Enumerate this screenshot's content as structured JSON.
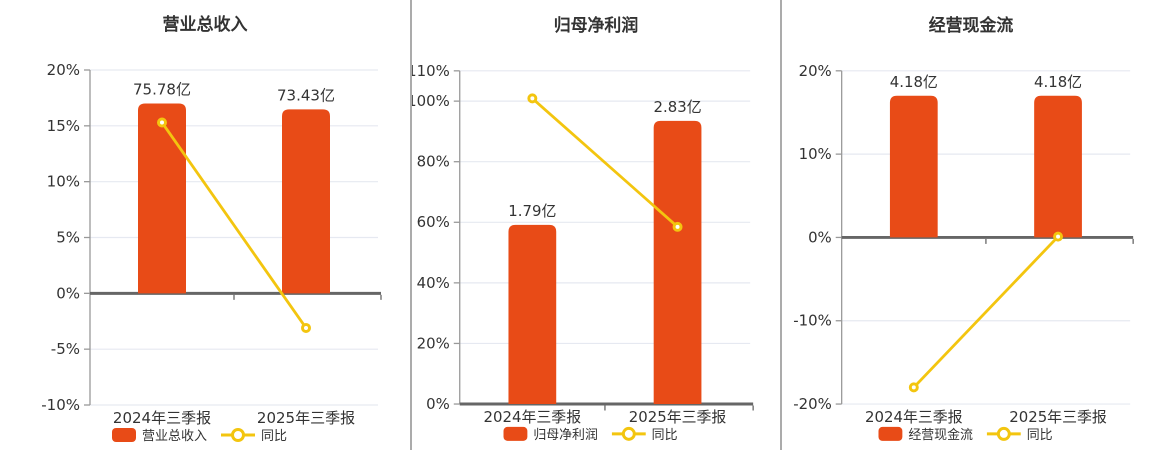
{
  "palette": {
    "background": "#ffffff",
    "bar": "#e84b17",
    "line": "#f3c50f",
    "grid": "#e6e9f1",
    "axis": "#999999",
    "baseline": "#666666",
    "text": "#333333",
    "separator": "#ababab"
  },
  "chart_data": [
    {
      "type": "bar",
      "title": "营业总收入",
      "categories": [
        "2024年三季报",
        "2025年三季报"
      ],
      "bar_series": {
        "name": "营业总收入",
        "unit": "亿",
        "values": [
          75.78,
          73.43
        ],
        "labels": [
          "75.78亿",
          "73.43亿"
        ]
      },
      "line_series": {
        "name": "同比",
        "unit": "%",
        "values_pct": [
          15.3,
          -3.1
        ]
      },
      "axis": {
        "min": -10,
        "max": 20,
        "ticks": [
          20,
          15,
          10,
          5,
          0,
          -5,
          -10
        ],
        "tick_suffix": "%",
        "grid": true
      },
      "legend_position": "bottom"
    },
    {
      "type": "bar",
      "title": "归母净利润",
      "categories": [
        "2024年三季报",
        "2025年三季报"
      ],
      "bar_series": {
        "name": "归母净利润",
        "unit": "亿",
        "values": [
          1.79,
          2.83
        ],
        "labels": [
          "1.79亿",
          "2.83亿"
        ]
      },
      "line_series": {
        "name": "同比",
        "unit": "%",
        "values_pct": [
          100.9,
          58.5
        ]
      },
      "axis": {
        "min": 0,
        "max": 110,
        "ticks": [
          110,
          100,
          80,
          60,
          40,
          20,
          0
        ],
        "tick_suffix": "%",
        "grid": true
      },
      "legend_position": "bottom"
    },
    {
      "type": "bar",
      "title": "经营现金流",
      "categories": [
        "2024年三季报",
        "2025年三季报"
      ],
      "bar_series": {
        "name": "经营现金流",
        "unit": "亿",
        "values": [
          4.18,
          4.18
        ],
        "labels": [
          "4.18亿",
          "4.18亿"
        ]
      },
      "line_series": {
        "name": "同比",
        "unit": "%",
        "values_pct": [
          -18.0,
          0.1
        ]
      },
      "axis": {
        "min": -20,
        "max": 20,
        "ticks": [
          20,
          10,
          0,
          -10,
          -20
        ],
        "tick_suffix": "%",
        "grid": true
      },
      "legend_position": "bottom"
    }
  ]
}
